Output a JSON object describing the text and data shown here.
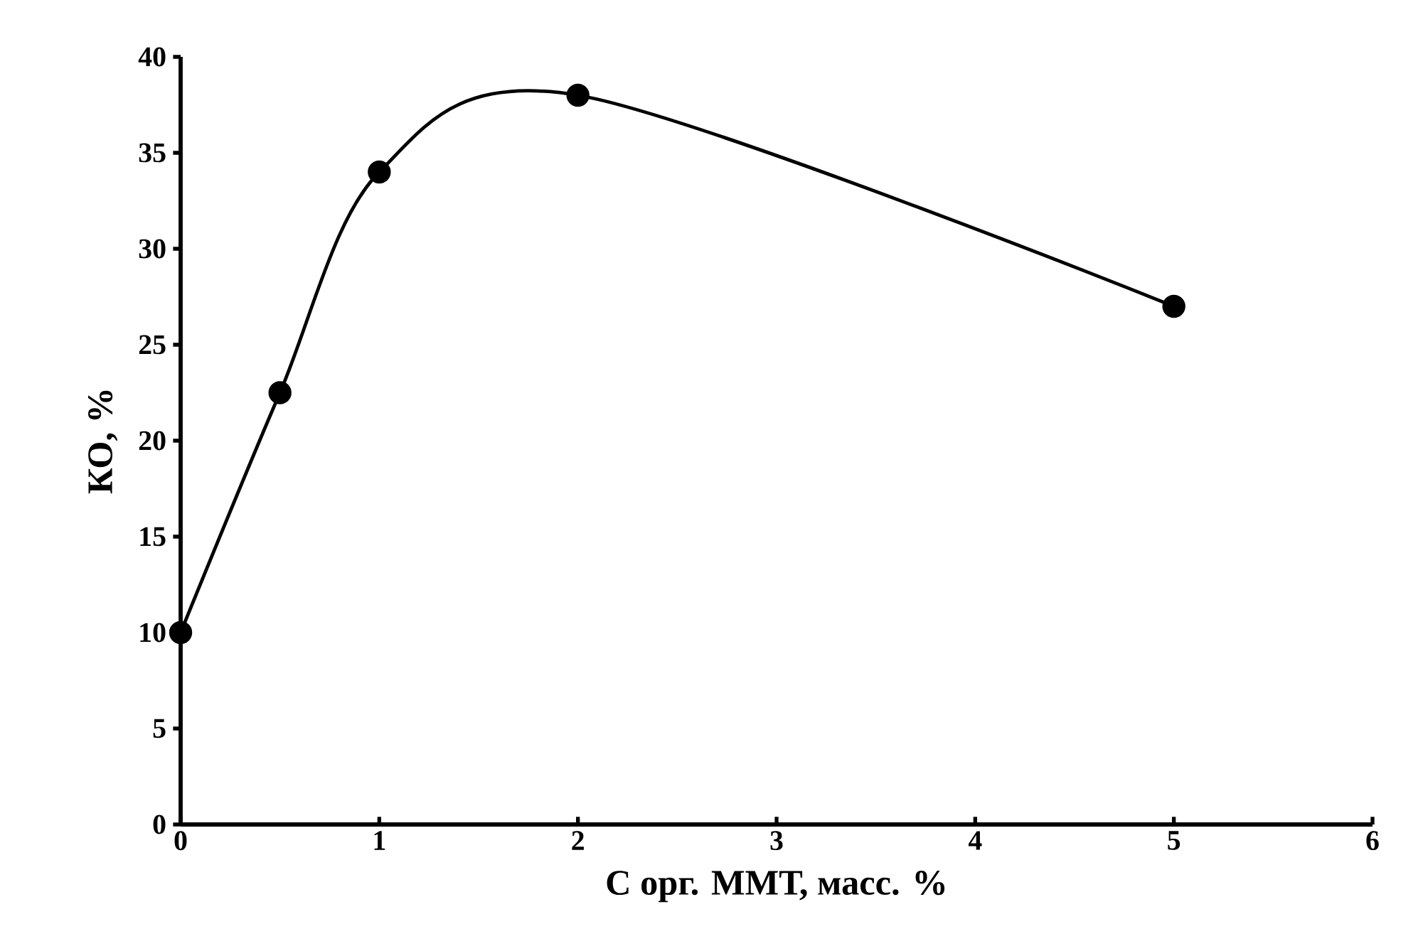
{
  "chart_data": {
    "type": "line",
    "xlabel": "С орг. ММТ, масс. %",
    "ylabel": "КО, %",
    "x": [
      0,
      0.5,
      1,
      2,
      5
    ],
    "values": [
      10,
      22.5,
      34,
      38,
      27
    ],
    "color": "#000000",
    "xlim": [
      0,
      6
    ],
    "xticks": [
      0,
      1,
      2,
      3,
      4,
      5,
      6
    ],
    "ylim": [
      0,
      40
    ],
    "yticks": [
      0,
      5,
      10,
      15,
      20,
      25,
      30,
      35,
      40
    ],
    "marker": "circle",
    "line_style": "solid"
  }
}
